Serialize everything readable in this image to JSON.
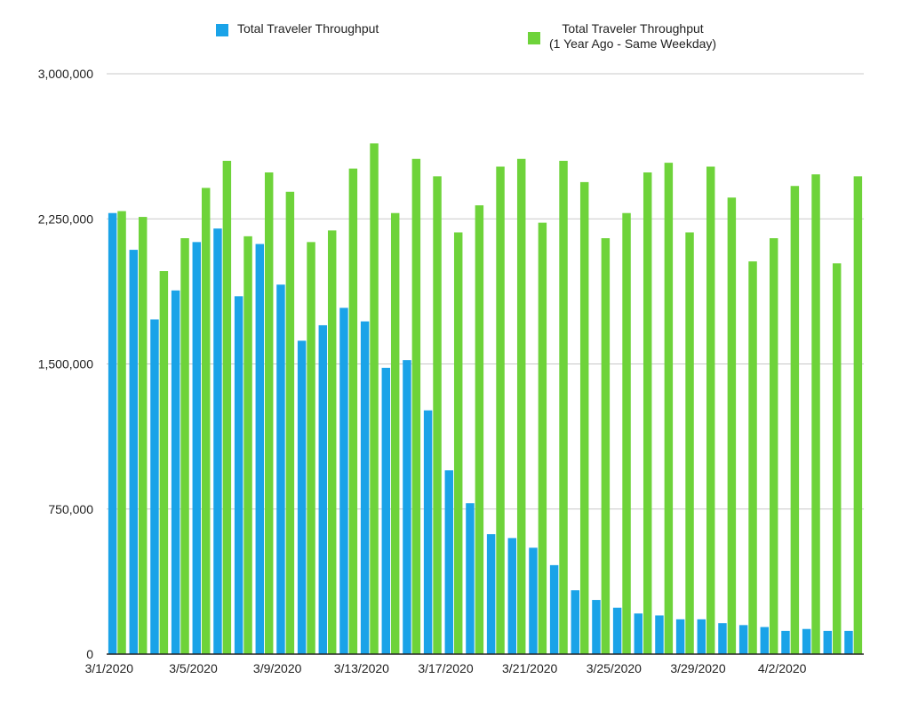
{
  "chart_data": {
    "type": "bar",
    "title": "",
    "xlabel": "",
    "ylabel": "",
    "ylim": [
      0,
      3000000
    ],
    "yticks": [
      0,
      750000,
      1500000,
      2250000,
      3000000
    ],
    "ytick_labels": [
      "0",
      "750,000",
      "1,500,000",
      "2,250,000",
      "3,000,000"
    ],
    "grid": true,
    "legend_position": "top",
    "categories": [
      "3/1/2020",
      "3/2/2020",
      "3/3/2020",
      "3/4/2020",
      "3/5/2020",
      "3/6/2020",
      "3/7/2020",
      "3/8/2020",
      "3/9/2020",
      "3/10/2020",
      "3/11/2020",
      "3/12/2020",
      "3/13/2020",
      "3/14/2020",
      "3/15/2020",
      "3/16/2020",
      "3/17/2020",
      "3/18/2020",
      "3/19/2020",
      "3/20/2020",
      "3/21/2020",
      "3/22/2020",
      "3/23/2020",
      "3/24/2020",
      "3/25/2020",
      "3/26/2020",
      "3/27/2020",
      "3/28/2020",
      "3/29/2020",
      "3/30/2020",
      "3/31/2020",
      "4/1/2020",
      "4/2/2020",
      "4/3/2020",
      "4/4/2020",
      "4/5/2020"
    ],
    "x_tick_labels": [
      {
        "index": 0,
        "label": "3/1/2020"
      },
      {
        "index": 4,
        "label": "3/5/2020"
      },
      {
        "index": 8,
        "label": "3/9/2020"
      },
      {
        "index": 12,
        "label": "3/13/2020"
      },
      {
        "index": 16,
        "label": "3/17/2020"
      },
      {
        "index": 20,
        "label": "3/21/2020"
      },
      {
        "index": 24,
        "label": "3/25/2020"
      },
      {
        "index": 28,
        "label": "3/29/2020"
      },
      {
        "index": 32,
        "label": "4/2/2020"
      }
    ],
    "series": [
      {
        "name": "Total Traveler Throughput",
        "color": "#1aa3e8",
        "values": [
          2280000,
          2090000,
          1730000,
          1880000,
          2130000,
          2200000,
          1850000,
          2120000,
          1910000,
          1620000,
          1700000,
          1790000,
          1720000,
          1480000,
          1520000,
          1260000,
          950000,
          780000,
          620000,
          600000,
          550000,
          460000,
          330000,
          280000,
          240000,
          210000,
          200000,
          180000,
          180000,
          160000,
          150000,
          140000,
          120000,
          130000,
          120000,
          120000
        ]
      },
      {
        "name": "Total Traveler Throughput (1 Year Ago - Same Weekday)",
        "color": "#6ed33a",
        "values": [
          2290000,
          2260000,
          1980000,
          2150000,
          2410000,
          2550000,
          2160000,
          2490000,
          2390000,
          2130000,
          2190000,
          2510000,
          2640000,
          2280000,
          2560000,
          2470000,
          2180000,
          2320000,
          2520000,
          2560000,
          2230000,
          2550000,
          2440000,
          2150000,
          2280000,
          2490000,
          2540000,
          2180000,
          2520000,
          2360000,
          2030000,
          2150000,
          2420000,
          2480000,
          2020000,
          2470000
        ]
      }
    ]
  },
  "legend": {
    "item1": {
      "line1": "Total Traveler Throughput"
    },
    "item2": {
      "line1": "Total Traveler Throughput",
      "line2": "(1 Year Ago - Same Weekday)"
    }
  }
}
